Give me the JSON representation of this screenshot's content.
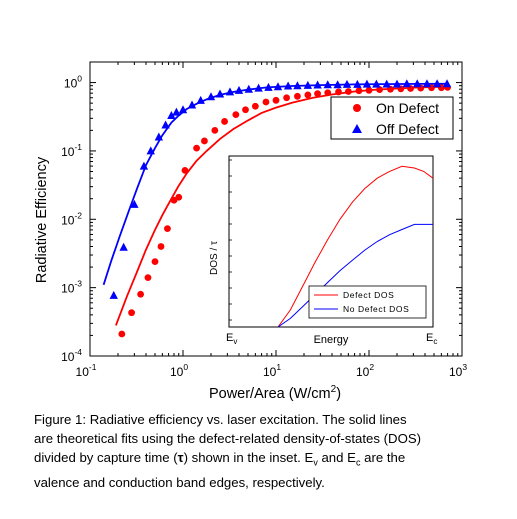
{
  "chart_data": [
    {
      "type": "scatter",
      "xlabel": "Power/Area (W/cm",
      "xlabel_sup": "2",
      "xlabel_end": ")",
      "ylabel": "Radiative Efficiency",
      "xscale": "log",
      "yscale": "log",
      "xlim": [
        0.1,
        1000
      ],
      "ylim": [
        0.0001,
        2
      ],
      "grid": false,
      "legend": "upper right inside",
      "x_ticks": [
        {
          "base": "10",
          "exp": "-1",
          "v": 0.1
        },
        {
          "base": "10",
          "exp": "0",
          "v": 1
        },
        {
          "base": "10",
          "exp": "1",
          "v": 10
        },
        {
          "base": "10",
          "exp": "2",
          "v": 100
        },
        {
          "base": "10",
          "exp": "3",
          "v": 1000
        }
      ],
      "y_ticks": [
        {
          "base": "10",
          "exp": "-4",
          "v": 0.0001
        },
        {
          "base": "10",
          "exp": "-3",
          "v": 0.001
        },
        {
          "base": "10",
          "exp": "-2",
          "v": 0.01
        },
        {
          "base": "10",
          "exp": "-1",
          "v": 0.1
        },
        {
          "base": "10",
          "exp": "0",
          "v": 1
        }
      ],
      "series": [
        {
          "name": "On Defect",
          "marker": "circle",
          "color": "#ff0000",
          "x": [
            0.22,
            0.28,
            0.35,
            0.42,
            0.5,
            0.58,
            0.68,
            0.8,
            0.9,
            1.05,
            1.4,
            1.7,
            2.2,
            2.8,
            3.7,
            4.7,
            6.0,
            7.8,
            10,
            13,
            17,
            22,
            28,
            36,
            47,
            60,
            78,
            100,
            130,
            170,
            220,
            280,
            360,
            470,
            600,
            700
          ],
          "y": [
            0.00021,
            0.00043,
            0.0008,
            0.0014,
            0.0024,
            0.004,
            0.0073,
            0.019,
            0.021,
            0.052,
            0.11,
            0.14,
            0.2,
            0.27,
            0.34,
            0.4,
            0.45,
            0.52,
            0.55,
            0.6,
            0.63,
            0.66,
            0.69,
            0.71,
            0.73,
            0.74,
            0.76,
            0.77,
            0.79,
            0.8,
            0.81,
            0.82,
            0.83,
            0.84,
            0.84,
            0.85
          ]
        },
        {
          "name": "Off Defect",
          "marker": "triangle",
          "color": "#0000ff",
          "x": [
            0.18,
            0.23,
            0.3,
            0.38,
            0.45,
            0.55,
            0.65,
            0.75,
            0.85,
            1.0,
            1.25,
            1.55,
            2.0,
            2.5,
            3.2,
            4.0,
            5.1,
            6.5,
            8.3,
            10.5,
            13.5,
            17,
            22,
            28,
            36,
            46,
            58,
            75,
            95,
            120,
            155,
            200,
            255,
            330,
            420,
            540,
            690
          ],
          "y": [
            0.00077,
            0.0039,
            0.0165,
            0.06,
            0.1,
            0.16,
            0.24,
            0.33,
            0.37,
            0.4,
            0.47,
            0.55,
            0.62,
            0.68,
            0.73,
            0.77,
            0.8,
            0.83,
            0.85,
            0.87,
            0.89,
            0.9,
            0.91,
            0.92,
            0.93,
            0.93,
            0.94,
            0.94,
            0.95,
            0.95,
            0.95,
            0.95,
            0.96,
            0.96,
            0.96,
            0.96,
            0.96
          ]
        },
        {
          "name": "fit-on",
          "kind": "line",
          "color": "#ff0000",
          "x": [
            0.19,
            0.25,
            0.32,
            0.4,
            0.5,
            0.6,
            0.75,
            0.9,
            1.1,
            1.4,
            1.8,
            2.5,
            3.5,
            5,
            7,
            10,
            15,
            25,
            40,
            70,
            120,
            200,
            350,
            700
          ],
          "y": [
            0.00028,
            0.00075,
            0.0017,
            0.0036,
            0.007,
            0.0115,
            0.02,
            0.031,
            0.047,
            0.072,
            0.1,
            0.15,
            0.21,
            0.28,
            0.36,
            0.43,
            0.51,
            0.6,
            0.67,
            0.74,
            0.79,
            0.82,
            0.85,
            0.87
          ]
        },
        {
          "name": "fit-off",
          "kind": "line",
          "color": "#0000ff",
          "x": [
            0.14,
            0.17,
            0.21,
            0.26,
            0.32,
            0.4,
            0.5,
            0.6,
            0.75,
            0.9,
            1.1,
            1.4,
            1.8,
            2.5,
            3.5,
            5,
            8,
            15,
            30,
            70,
            150,
            350,
            700
          ],
          "y": [
            0.0011,
            0.0025,
            0.0058,
            0.013,
            0.028,
            0.062,
            0.11,
            0.17,
            0.26,
            0.33,
            0.41,
            0.49,
            0.57,
            0.66,
            0.73,
            0.79,
            0.85,
            0.89,
            0.92,
            0.94,
            0.95,
            0.955,
            0.96
          ]
        }
      ]
    },
    {
      "type": "line",
      "inset": true,
      "xlabel": "Energy",
      "ylabel": "DOS / ",
      "ylabel_sym": "τ",
      "x_tick_labels": [
        {
          "base": "E",
          "sub": "v"
        },
        {
          "base": "E",
          "sub": "c"
        }
      ],
      "xlim": [
        0,
        1
      ],
      "ylim": [
        0,
        1
      ],
      "series": [
        {
          "name": "Defect DOS",
          "color": "#ff0000",
          "x": [
            0.0,
            0.08,
            0.16,
            0.24,
            0.32,
            0.4,
            0.48,
            0.56,
            0.64,
            0.72,
            0.8,
            0.88,
            0.94,
            1.0
          ],
          "y": [
            0.0,
            0.1,
            0.24,
            0.38,
            0.51,
            0.63,
            0.73,
            0.81,
            0.87,
            0.91,
            0.94,
            0.93,
            0.91,
            0.87
          ]
        },
        {
          "name": "No Defect DOS",
          "color": "#0000ff",
          "x": [
            0.0,
            0.08,
            0.16,
            0.24,
            0.32,
            0.4,
            0.48,
            0.56,
            0.64,
            0.72,
            0.8,
            0.88,
            0.94,
            1.0
          ],
          "y": [
            0.0,
            0.05,
            0.12,
            0.19,
            0.26,
            0.33,
            0.39,
            0.45,
            0.5,
            0.54,
            0.57,
            0.6,
            0.6,
            0.6
          ]
        }
      ]
    }
  ],
  "caption": {
    "line1": "Figure 1: Radiative efficiency vs. laser excitation.  The solid lines",
    "line2": "are theoretical fits using the defect-related density-of-states (DOS)",
    "line3a": "divided by capture time (",
    "tau": "τ",
    "line3b": ") shown in the inset.  E",
    "ev_sub": "v",
    "line3c": " and E",
    "ec_sub": "c",
    "line3d": " are the",
    "line4": "valence and conduction band edges, respectively."
  }
}
